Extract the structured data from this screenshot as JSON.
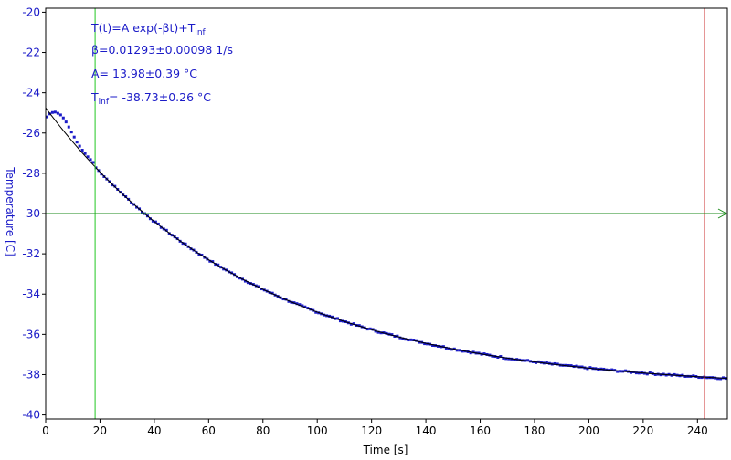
{
  "colors": {
    "data": "#1b1bc8",
    "fit": "#000000",
    "axis_text": "#1b1bc8",
    "cursor_vertical_left": "#22c622",
    "cursor_horizontal": "#1a8a1a",
    "cursor_vertical_right": "#c81e1e",
    "frame": "#000000"
  },
  "chart_data": {
    "type": "scatter",
    "title": "",
    "xlabel": "Time [s]",
    "ylabel": "Temperature [C]",
    "xlim": [
      0,
      251
    ],
    "ylim": [
      -40.2,
      -19.8
    ],
    "xticks": [
      0,
      20,
      40,
      60,
      80,
      100,
      120,
      140,
      160,
      180,
      200,
      220,
      240
    ],
    "yticks": [
      -20,
      -22,
      -24,
      -26,
      -28,
      -30,
      -32,
      -34,
      -36,
      -38,
      -40
    ],
    "grid": false,
    "fit": {
      "model": "T(t)=A exp(-βt)+T_inf",
      "beta": 0.01293,
      "A": 13.98,
      "T_inf": -38.73,
      "x_range": [
        0,
        251
      ]
    },
    "annotations": {
      "line1_main": "T(t)=A exp(-βt)+T",
      "line1_sub": "inf",
      "line2": "β=0.01293±0.00098 1/s",
      "line3": "A= 13.98±0.39 °C",
      "line4_main": "T",
      "line4_sub": "inf",
      "line4_rest": "= -38.73±0.26 °C"
    },
    "cursors": {
      "vertical_left_x": 18.2,
      "vertical_right_x": 242.6,
      "horizontal_y": -30
    },
    "series": [
      {
        "points": {
          "x_start": 0.5,
          "x_end": 250.5,
          "x_step": 1.0,
          "early": [
            [
              0.5,
              -25.2
            ],
            [
              1.5,
              -25.05
            ],
            [
              2.5,
              -24.98
            ],
            [
              3.5,
              -24.96
            ],
            [
              4.5,
              -25.02
            ],
            [
              5.5,
              -25.1
            ],
            [
              6.5,
              -25.25
            ],
            [
              7.5,
              -25.45
            ],
            [
              8.5,
              -25.7
            ],
            [
              9.5,
              -25.95
            ],
            [
              10.5,
              -26.2
            ],
            [
              11.5,
              -26.45
            ],
            [
              12.5,
              -26.65
            ],
            [
              13.5,
              -26.85
            ],
            [
              14.5,
              -27.02
            ],
            [
              15.5,
              -27.18
            ],
            [
              16.5,
              -27.32
            ],
            [
              17.5,
              -27.46
            ]
          ]
        }
      }
    ]
  }
}
